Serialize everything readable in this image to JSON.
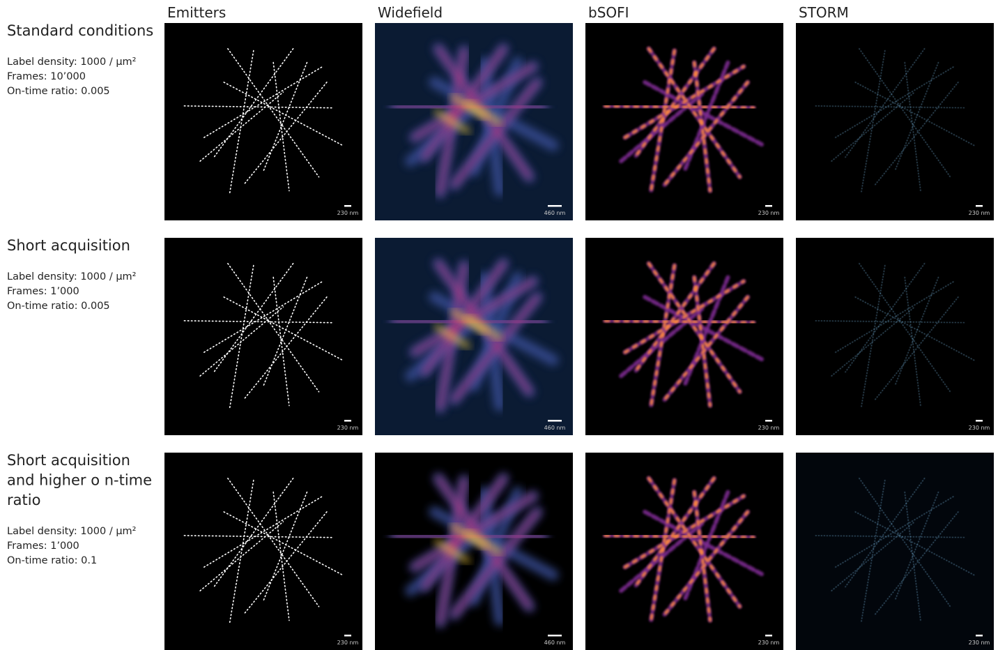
{
  "columns": [
    "Emitters",
    "Widefield",
    "bSOFI",
    "STORM"
  ],
  "rows": [
    {
      "title": [
        "Standard  conditions"
      ],
      "params": [
        "Label  density: 1000  / μm²",
        "Frames: 10’000",
        "On-time ratio: 0.005"
      ],
      "scale_bars": [
        "230 nm",
        "460 nm",
        "230 nm",
        "230 nm"
      ]
    },
    {
      "title": [
        "Short  acquisition"
      ],
      "params": [
        "Label  density: 1000  / μm²",
        "Frames: 1’000",
        "On-time ratio:  0.005"
      ],
      "scale_bars": [
        "230 nm",
        "460 nm",
        "230 nm",
        "230 nm"
      ]
    },
    {
      "title": [
        "Short acquisition",
        "and higher o n-time",
        "ratio"
      ],
      "params": [
        "Label  density: 1000  / μm²",
        "Frames: 1’000",
        "On-time ratio: 0.1"
      ],
      "scale_bars": [
        "230 nm",
        "460 nm",
        "230 nm",
        "230 nm"
      ]
    }
  ]
}
